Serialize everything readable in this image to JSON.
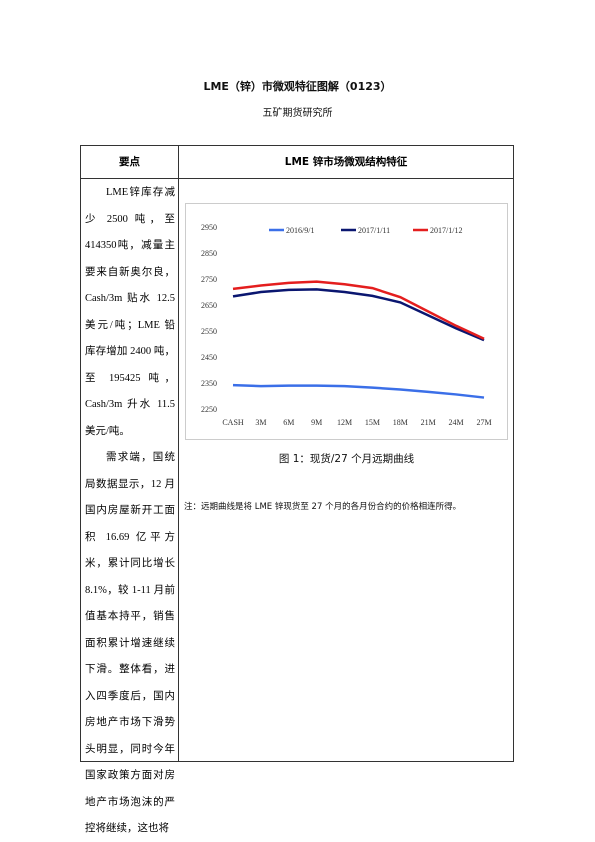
{
  "header": {
    "title": "LME（锌）市微观特征图解（0123）",
    "subtitle": "五矿期货研究所"
  },
  "table": {
    "headers": [
      "要点",
      "LME 锌市场微观结构特征"
    ],
    "left_paragraphs": [
      "LME锌库存减少 2500 吨，至 414350吨，减量主要来自新奥尔良，Cash/3m 贴水 12.5 美元/吨；LME 铅库存增加 2400 吨，至 195425 吨，Cash/3m 升水 11.5 美元/吨。",
      "需求端，国统局数据显示，12 月国内房屋新开工面积 16.69 亿平方米，累计同比增长 8.1%，较 1-11 月前值基本持平，销售面积累计增速继续下滑。整体看，进入四季度后，国内房地产市场下滑势头明显，同时今年国家政策方面对房地产市场泡沫的严控将继续，这也将"
    ],
    "caption": "图 1：现货/27 个月远期曲线",
    "note": "注：远期曲线是将 LME 锌现货至 27 个月的各月份合约的价格相连所得。"
  },
  "chart_data": {
    "type": "line",
    "categories": [
      "CASH",
      "3M",
      "6M",
      "9M",
      "12M",
      "15M",
      "18M",
      "21M",
      "24M",
      "27M"
    ],
    "series": [
      {
        "name": "2016/9/1",
        "color": "#3b6fe8",
        "values": [
          2342,
          2338,
          2340,
          2340,
          2338,
          2332,
          2325,
          2316,
          2306,
          2294
        ]
      },
      {
        "name": "2017/1/11",
        "color": "#0a1670",
        "values": [
          2683,
          2700,
          2708,
          2710,
          2700,
          2685,
          2660,
          2610,
          2560,
          2515
        ]
      },
      {
        "name": "2017/1/12",
        "color": "#e41e1e",
        "values": [
          2712,
          2725,
          2735,
          2740,
          2730,
          2715,
          2680,
          2625,
          2570,
          2520
        ]
      }
    ],
    "ylim": [
      2250,
      2950
    ],
    "yticks": [
      2250,
      2350,
      2450,
      2550,
      2650,
      2750,
      2850,
      2950
    ],
    "legend": "top"
  }
}
